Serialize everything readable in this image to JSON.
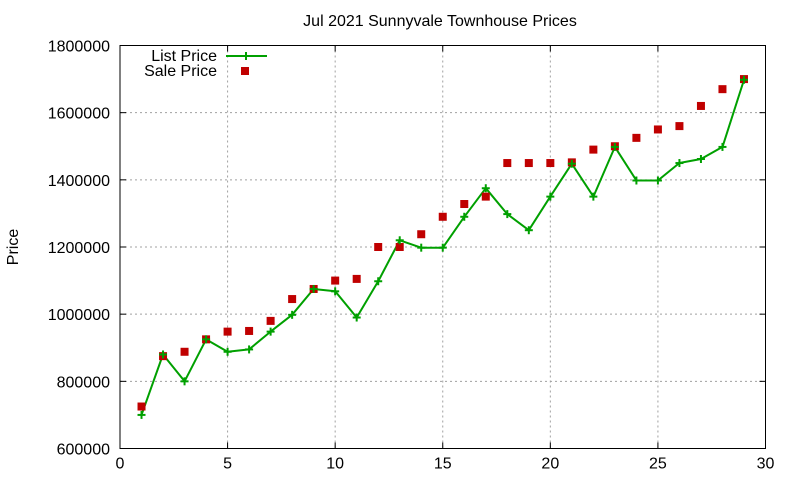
{
  "chart_data": {
    "type": "line",
    "title": "Jul 2021 Sunnyvale Townhouse Prices",
    "xlabel": "",
    "ylabel": "Price",
    "xlim": [
      0,
      30
    ],
    "ylim": [
      600000,
      1800000
    ],
    "xticks": [
      0,
      5,
      10,
      15,
      20,
      25,
      30
    ],
    "yticks": [
      600000,
      800000,
      1000000,
      1200000,
      1400000,
      1600000,
      1800000
    ],
    "grid": true,
    "legend_position": "top-left",
    "x": [
      1,
      2,
      3,
      4,
      5,
      6,
      7,
      8,
      9,
      10,
      11,
      12,
      13,
      14,
      15,
      16,
      17,
      18,
      19,
      20,
      21,
      22,
      23,
      24,
      25,
      26,
      27,
      28,
      29
    ],
    "series": [
      {
        "name": "List Price",
        "style": "line-with-plus-markers",
        "color": "#00a000",
        "values": [
          700000,
          880000,
          800000,
          925000,
          888000,
          895000,
          948000,
          998000,
          1075000,
          1068000,
          990000,
          1098000,
          1220000,
          1198000,
          1198000,
          1290000,
          1375000,
          1298000,
          1250000,
          1350000,
          1448000,
          1350000,
          1498000,
          1398000,
          1398000,
          1450000,
          1462000,
          1498000,
          1698000
        ]
      },
      {
        "name": "Sale Price",
        "style": "square-markers",
        "color": "#c00000",
        "values": [
          725000,
          875000,
          888000,
          925000,
          948000,
          950000,
          980000,
          1045000,
          1075000,
          1100000,
          1105000,
          1200000,
          1200000,
          1238000,
          1290000,
          1328000,
          1350000,
          1450000,
          1450000,
          1450000,
          1452000,
          1490000,
          1500000,
          1525000,
          1550000,
          1560000,
          1620000,
          1670000,
          1700000
        ]
      }
    ]
  }
}
